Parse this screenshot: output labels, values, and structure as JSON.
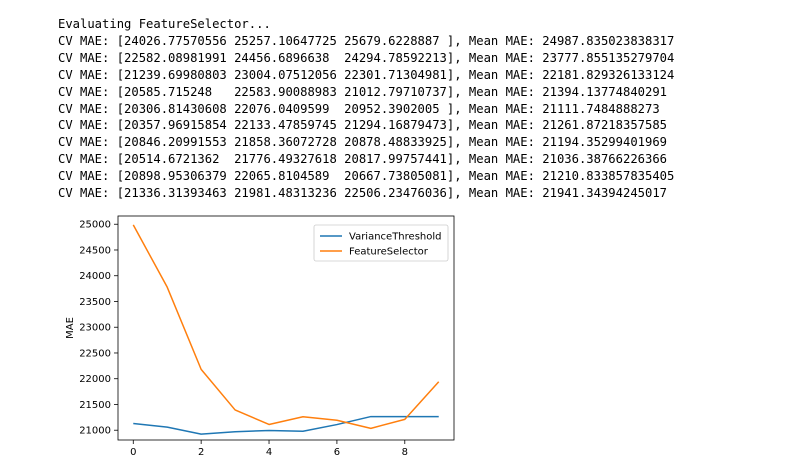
{
  "console": {
    "lines": [
      "Evaluating FeatureSelector...",
      "CV MAE: [24026.77570556 25257.10647725 25679.6228887 ], Mean MAE: 24987.835023838317",
      "CV MAE: [22582.08981991 24456.6896638  24294.78592213], Mean MAE: 23777.855135279704",
      "CV MAE: [21239.69980803 23004.07512056 22301.71304981], Mean MAE: 22181.829326133124",
      "CV MAE: [20585.715248   22583.90088983 21012.79710737], Mean MAE: 21394.13774840291",
      "CV MAE: [20306.81430608 22076.0409599  20952.3902005 ], Mean MAE: 21111.7484888273",
      "CV MAE: [20357.96915854 22133.47859745 21294.16879473], Mean MAE: 21261.87218357585",
      "CV MAE: [20846.20991553 21858.36072728 20878.48833925], Mean MAE: 21194.35299401969",
      "CV MAE: [20514.6721362  21776.49327618 20817.99757441], Mean MAE: 21036.38766226366",
      "CV MAE: [20898.95306379 22065.8104589  20667.73805081], Mean MAE: 21210.833857835405",
      "CV MAE: [21336.31393463 21981.48313236 22506.23476036], Mean MAE: 21941.34394245017"
    ]
  },
  "chart_data": {
    "type": "line",
    "title": "",
    "xlabel": "",
    "ylabel": "MAE",
    "x": [
      0,
      1,
      2,
      3,
      4,
      5,
      6,
      7,
      8,
      9
    ],
    "xlim": [
      -0.45,
      9.45
    ],
    "ylim": [
      20810,
      25160
    ],
    "xticks": [
      "0",
      "2",
      "4",
      "6",
      "8"
    ],
    "yticks": [
      "21000",
      "21500",
      "22000",
      "22500",
      "23000",
      "23500",
      "24000",
      "24500",
      "25000"
    ],
    "grid": false,
    "legend_position": "top-right",
    "series": [
      {
        "name": "VarianceThreshold",
        "color": "#1f77b4",
        "values": [
          21130,
          21060,
          20925,
          20970,
          20995,
          20980,
          21110,
          21265,
          21265,
          21265
        ]
      },
      {
        "name": "FeatureSelector",
        "color": "#ff7f0e",
        "values": [
          24987.835023838317,
          23777.855135279704,
          22181.829326133124,
          21394.13774840291,
          21111.7484888273,
          21261.87218357585,
          21194.35299401969,
          21036.38766226366,
          21210.833857835405,
          21941.34394245017
        ]
      }
    ]
  }
}
